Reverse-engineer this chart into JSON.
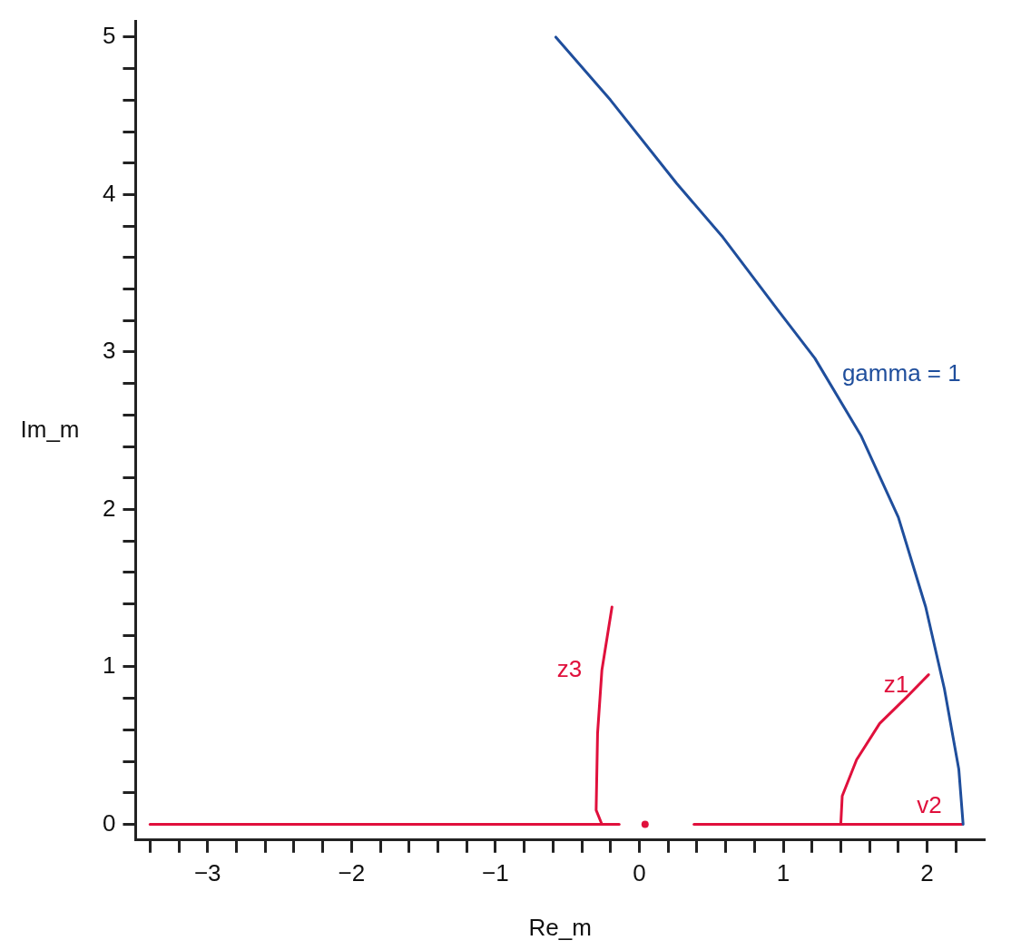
{
  "chart_data": {
    "type": "line",
    "xlabel": "Re_m",
    "ylabel": "Im_m",
    "xlim": [
      -3.5,
      2.4
    ],
    "ylim": [
      -0.1,
      5.1
    ],
    "xticks": [
      {
        "value": -3.4,
        "label": null
      },
      -3,
      {
        "value": -2.8,
        "label": null
      },
      {
        "value": -2.6,
        "label": null
      },
      {
        "value": -2.4,
        "label": null
      },
      {
        "value": -2.2,
        "label": null
      },
      -2,
      {
        "value": -1.8,
        "label": null
      },
      {
        "value": -1.6,
        "label": null
      },
      {
        "value": -1.4,
        "label": null
      },
      {
        "value": -1.2,
        "label": null
      },
      -1,
      {
        "value": -0.8,
        "label": null
      },
      {
        "value": -0.6,
        "label": null
      },
      {
        "value": -0.4,
        "label": null
      },
      {
        "value": -0.2,
        "label": null
      },
      0,
      {
        "value": 0.2,
        "label": null
      },
      {
        "value": 0.4,
        "label": null
      },
      {
        "value": 0.6,
        "label": null
      },
      {
        "value": 0.8,
        "label": null
      },
      1,
      {
        "value": 1.2,
        "label": null
      },
      {
        "value": 1.4,
        "label": null
      },
      {
        "value": 1.6,
        "label": null
      },
      {
        "value": 1.8,
        "label": null
      },
      2,
      {
        "value": 2.2,
        "label": null
      },
      {
        "value": -3.2,
        "label": null
      }
    ],
    "yticks": [
      0,
      {
        "value": 0.2,
        "label": null
      },
      {
        "value": 0.4,
        "label": null
      },
      {
        "value": 0.6,
        "label": null
      },
      {
        "value": 0.8,
        "label": null
      },
      1,
      {
        "value": 1.2,
        "label": null
      },
      {
        "value": 1.4,
        "label": null
      },
      {
        "value": 1.6,
        "label": null
      },
      {
        "value": 1.8,
        "label": null
      },
      2,
      {
        "value": 2.2,
        "label": null
      },
      {
        "value": 2.4,
        "label": null
      },
      {
        "value": 2.6,
        "label": null
      },
      {
        "value": 2.8,
        "label": null
      },
      3,
      {
        "value": 3.2,
        "label": null
      },
      {
        "value": 3.4,
        "label": null
      },
      {
        "value": 3.6,
        "label": null
      },
      {
        "value": 3.8,
        "label": null
      },
      4,
      {
        "value": 4.2,
        "label": null
      },
      {
        "value": 4.4,
        "label": null
      },
      {
        "value": 4.6,
        "label": null
      },
      {
        "value": 4.8,
        "label": null
      },
      5
    ],
    "grid": false,
    "legend": false,
    "series": [
      {
        "name": "gamma = 1",
        "color": "#1f4e9c",
        "x": [
          -0.58,
          -0.2,
          0.26,
          0.58,
          0.96,
          1.22,
          1.54,
          1.8,
          1.99,
          2.12,
          2.22,
          2.25
        ],
        "values": [
          5,
          4.6,
          4.07,
          3.73,
          3.27,
          2.96,
          2.47,
          1.95,
          1.38,
          0.86,
          0.35,
          0
        ]
      },
      {
        "name": "z3",
        "color": "#e0103c",
        "x": [
          -0.26,
          -0.3,
          -0.29,
          -0.26,
          -0.19
        ],
        "values": [
          0,
          0.09,
          0.58,
          0.98,
          1.38
        ]
      },
      {
        "name": "z1",
        "color": "#e0103c",
        "x": [
          1.4,
          1.41,
          1.51,
          1.67,
          1.86,
          2.01
        ],
        "values": [
          0,
          0.18,
          0.41,
          0.64,
          0.81,
          0.95
        ]
      },
      {
        "color": "#e0103c",
        "x": [
          -3.4,
          -0.14
        ],
        "values": [
          0,
          0
        ]
      },
      {
        "name": "v2",
        "color": "#e0103c",
        "x": [
          0.38,
          2.24
        ],
        "values": [
          0,
          0
        ]
      },
      {
        "type": "scatter",
        "color": "#e0103c",
        "x": [
          0.04
        ],
        "values": [
          0
        ]
      }
    ]
  }
}
